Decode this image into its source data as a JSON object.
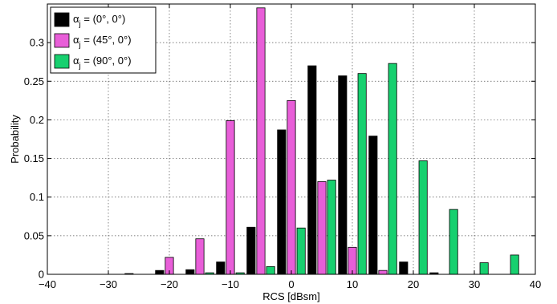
{
  "chart_data": {
    "type": "bar",
    "title": "",
    "xlabel": "RCS [dBsm]",
    "ylabel": "Probability",
    "xlim": [
      -40,
      40
    ],
    "ylim": [
      0,
      0.35
    ],
    "x_ticks": [
      -40,
      -30,
      -20,
      -10,
      0,
      10,
      20,
      30,
      40
    ],
    "x_tick_labels": [
      "−40",
      "−30",
      "−20",
      "−10",
      "0",
      "10",
      "20",
      "30",
      "40"
    ],
    "y_ticks": [
      0,
      0.05,
      0.1,
      0.15,
      0.2,
      0.25,
      0.3
    ],
    "y_tick_labels": [
      "0",
      "0.05",
      "0.1",
      "0.15",
      "0.2",
      "0.25",
      "0.3"
    ],
    "grid": true,
    "legend_position": "top-left",
    "categories": [
      -25,
      -20,
      -15,
      -10,
      -5,
      0,
      5,
      10,
      15,
      20,
      25,
      30,
      35
    ],
    "series": [
      {
        "name": "αj = (0°, 0°)",
        "legend_main": "α",
        "legend_sub": "j",
        "legend_rest": " = (0°, 0°)",
        "color": "#000000",
        "values": [
          0.001,
          0.005,
          0.006,
          0.016,
          0.061,
          0.187,
          0.27,
          0.257,
          0.179,
          0.016,
          0.002,
          0.0,
          0.0
        ]
      },
      {
        "name": "αj = (45°, 0°)",
        "legend_main": "α",
        "legend_sub": "j",
        "legend_rest": " = (45°, 0°)",
        "color": "#e85ed8",
        "values": [
          0.0,
          0.022,
          0.046,
          0.199,
          0.345,
          0.225,
          0.12,
          0.035,
          0.005,
          0.0,
          0.0,
          0.0,
          0.0
        ]
      },
      {
        "name": "αj = (90°, 0°)",
        "legend_main": "α",
        "legend_sub": "j",
        "legend_rest": " = (90°, 0°)",
        "color": "#17d06f",
        "values": [
          0.0,
          0.0,
          0.002,
          0.002,
          0.01,
          0.06,
          0.122,
          0.26,
          0.273,
          0.147,
          0.084,
          0.015,
          0.025
        ]
      }
    ]
  }
}
